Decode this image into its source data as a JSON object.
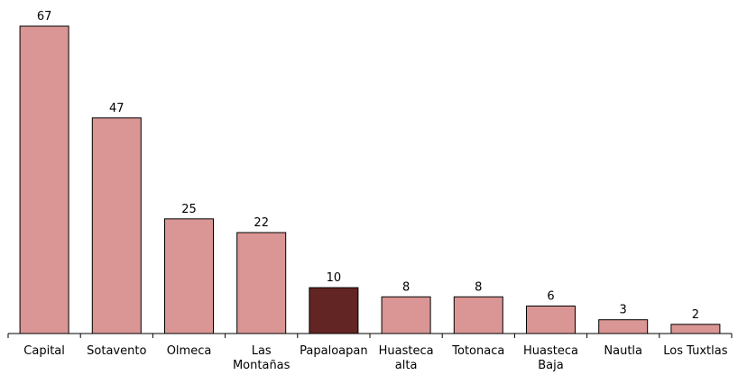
{
  "chart_data": {
    "type": "bar",
    "title": "",
    "xlabel": "",
    "ylabel": "",
    "categories": [
      [
        "Capital"
      ],
      [
        "Sotavento"
      ],
      [
        "Olmeca"
      ],
      [
        "Las",
        "Montañas"
      ],
      [
        "Papaloapan"
      ],
      [
        "Huasteca",
        "alta"
      ],
      [
        "Totonaca"
      ],
      [
        "Huasteca",
        "Baja"
      ],
      [
        "Nautla"
      ],
      [
        "Los Tuxtlas"
      ]
    ],
    "values": [
      67,
      47,
      25,
      22,
      10,
      8,
      8,
      6,
      3,
      2
    ],
    "highlight_index": 4,
    "ylim": [
      0,
      67
    ],
    "grid": false,
    "colors": {
      "bar": "#D99694",
      "highlight": "#632523",
      "axis": "#000000"
    }
  }
}
